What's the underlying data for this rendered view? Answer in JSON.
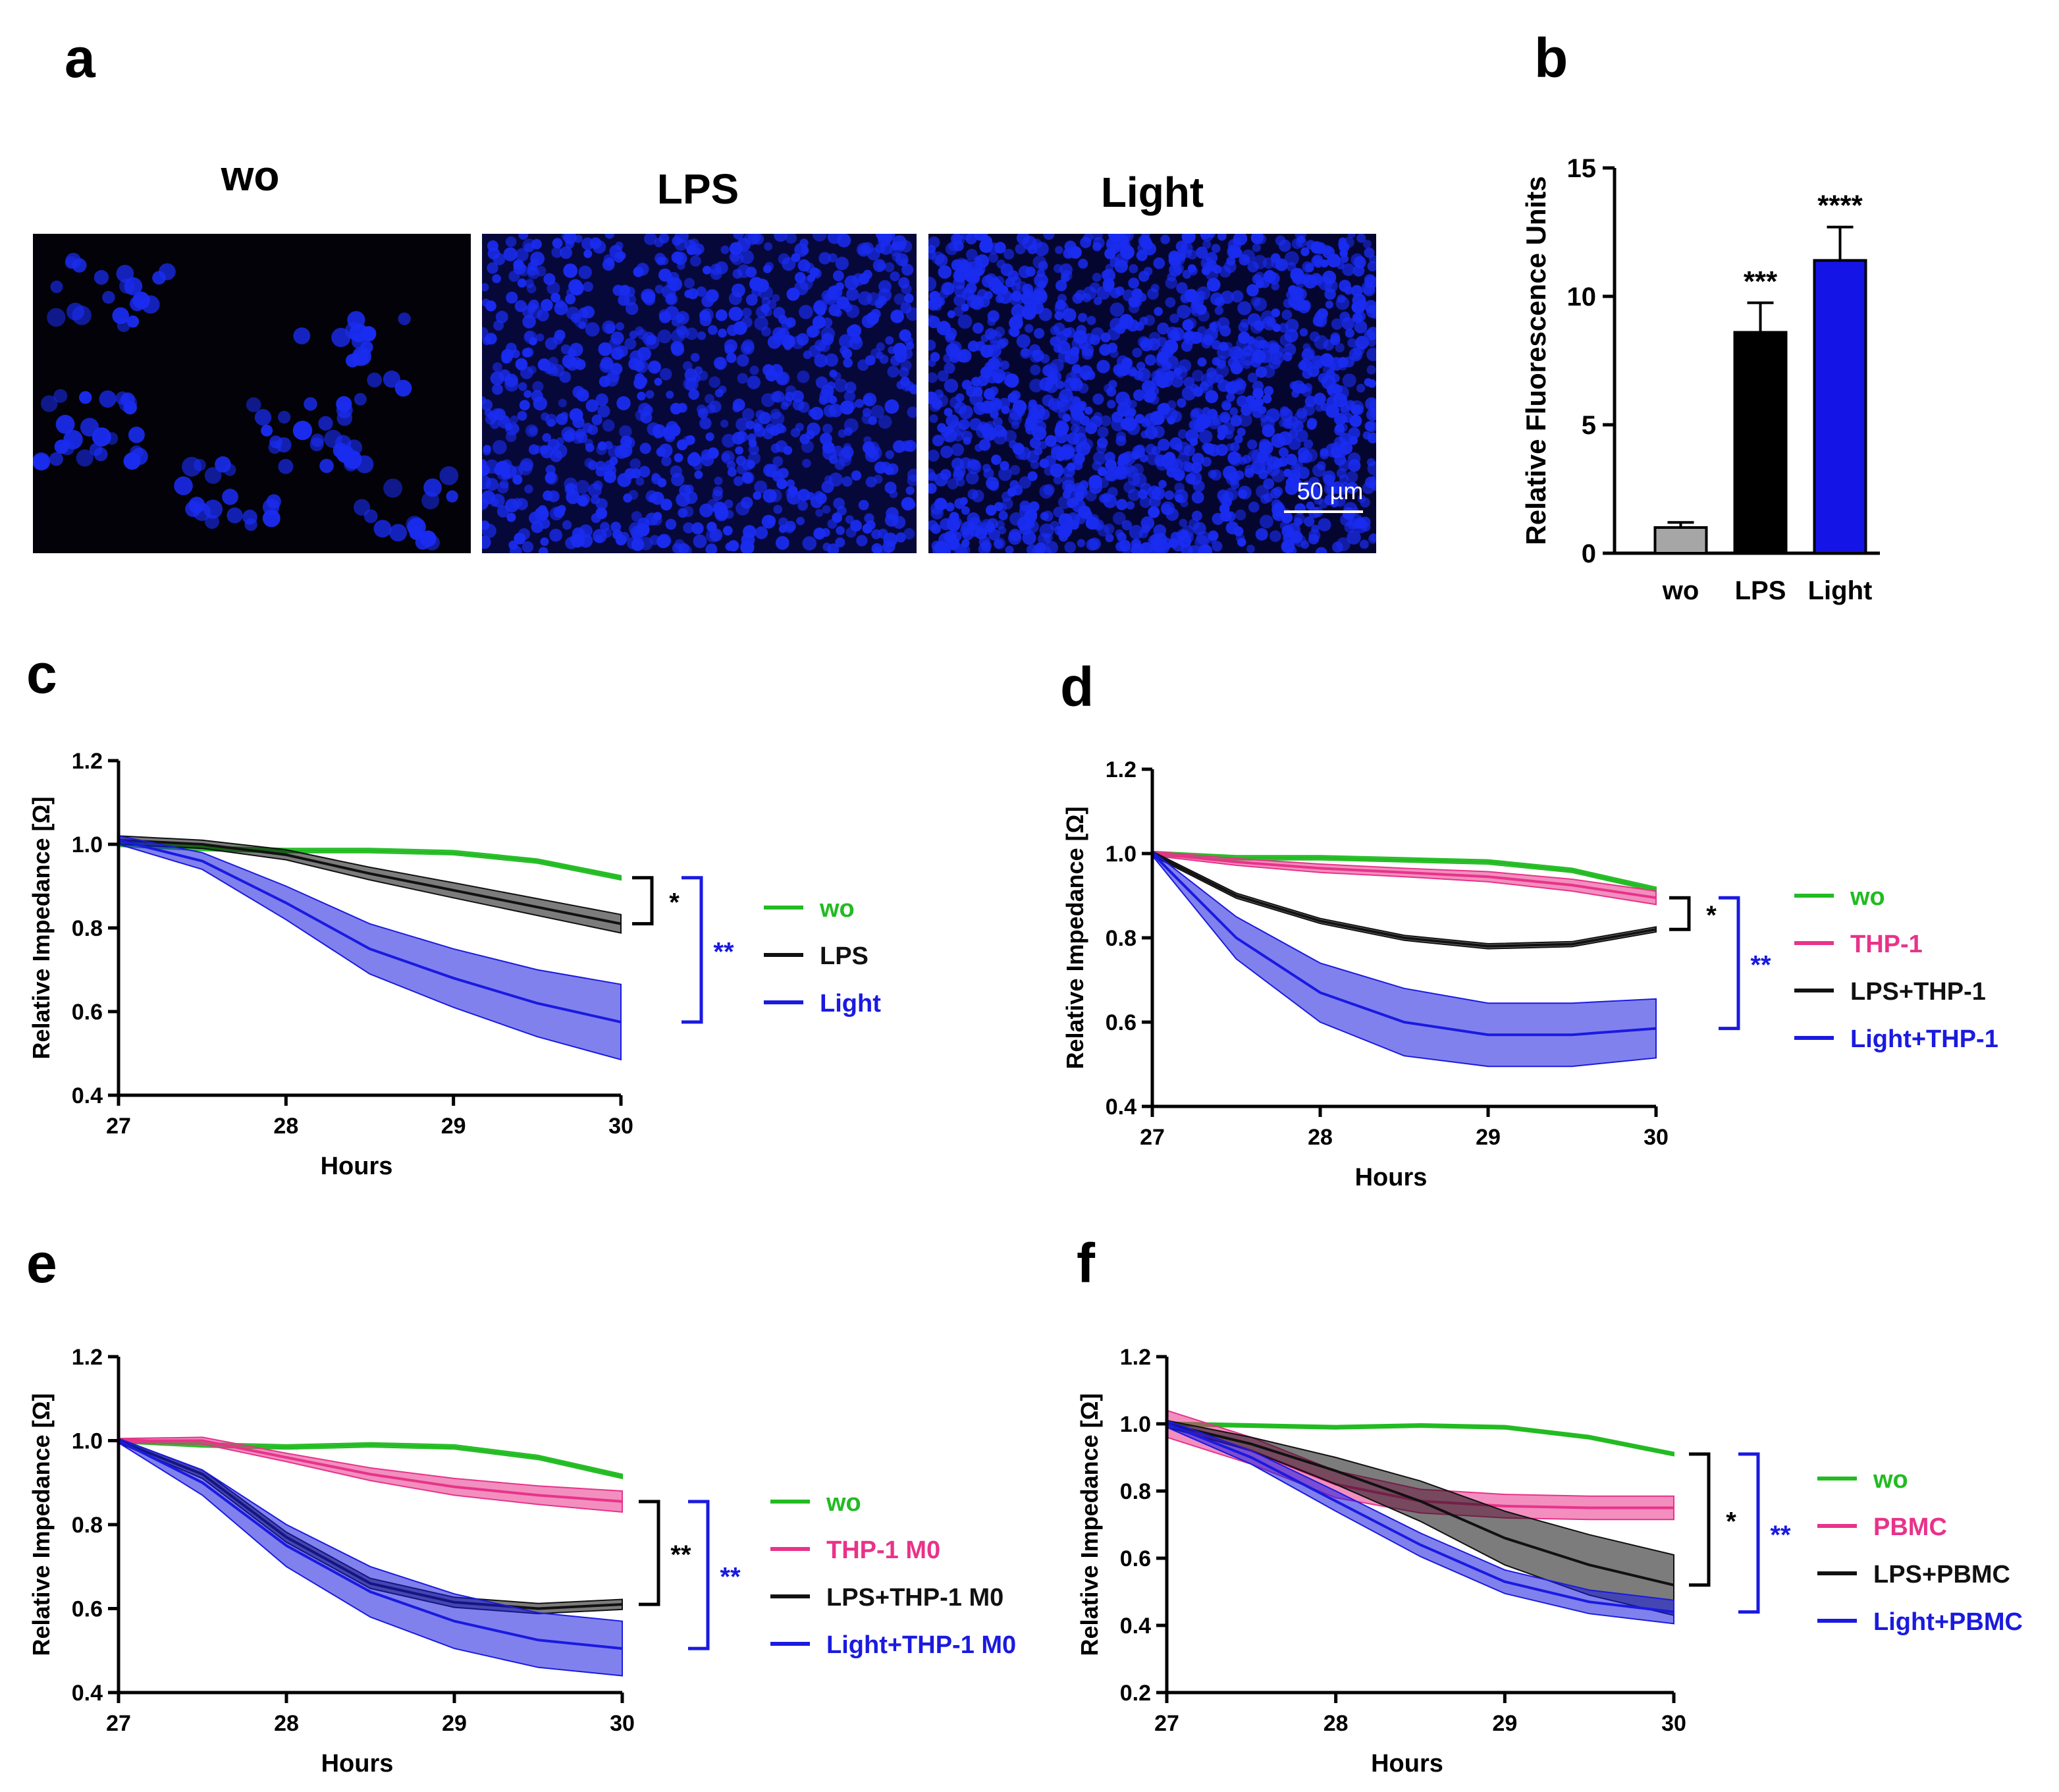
{
  "panel_letters": [
    "a",
    "b",
    "c",
    "d",
    "e",
    "f"
  ],
  "panel_a": {
    "image_titles": [
      "wo",
      "LPS",
      "Light"
    ],
    "scale_bar_label": "50 µm",
    "stain_color": "#1a2cf0"
  },
  "chart_data": [
    {
      "id": "b",
      "type": "bar",
      "categories": [
        "wo",
        "LPS",
        "Light"
      ],
      "values": [
        1.0,
        8.6,
        11.4
      ],
      "errors": [
        0.2,
        1.15,
        1.3
      ],
      "significance": [
        "",
        "***",
        "****"
      ],
      "colors": [
        "#a6a6a6",
        "#000000",
        "#1414e6"
      ],
      "ylabel": "Relative Fluorescence Units",
      "xlabel": "",
      "ylim": [
        0,
        15
      ],
      "yticks": [
        0,
        5,
        10,
        15
      ]
    },
    {
      "id": "c",
      "type": "line",
      "xlabel": "Hours",
      "ylabel": "Relative Impedance [Ω]",
      "xlim": [
        27,
        30
      ],
      "ylim": [
        0.4,
        1.2
      ],
      "xticks": [
        27,
        28,
        29,
        30
      ],
      "yticks": [
        0.4,
        0.6,
        0.8,
        1.0,
        1.2
      ],
      "x": [
        27.0,
        27.5,
        28.0,
        28.5,
        29.0,
        29.5,
        30.0
      ],
      "series": [
        {
          "name": "wo",
          "color": "#22bb22",
          "values": [
            1.0,
            0.99,
            0.985,
            0.985,
            0.98,
            0.96,
            0.92
          ],
          "errors": [
            0.005,
            0.005,
            0.005,
            0.005,
            0.005,
            0.005,
            0.005
          ]
        },
        {
          "name": "LPS",
          "color": "#111111",
          "values": [
            1.01,
            1.0,
            0.975,
            0.93,
            0.89,
            0.85,
            0.81
          ],
          "errors": [
            0.01,
            0.01,
            0.012,
            0.015,
            0.018,
            0.02,
            0.022
          ]
        },
        {
          "name": "Light",
          "color": "#1a1ae0",
          "values": [
            1.01,
            0.96,
            0.86,
            0.75,
            0.68,
            0.62,
            0.575
          ],
          "errors": [
            0.01,
            0.02,
            0.04,
            0.06,
            0.07,
            0.08,
            0.09
          ]
        }
      ],
      "brackets": [
        {
          "label": "*",
          "from": "wo",
          "to": "LPS",
          "color": "#000000"
        },
        {
          "label": "**",
          "from": "wo",
          "to": "Light",
          "color": "#1a1ae0"
        }
      ]
    },
    {
      "id": "d",
      "type": "line",
      "xlabel": "Hours",
      "ylabel": "Relative Impedance [Ω]",
      "xlim": [
        27,
        30
      ],
      "ylim": [
        0.4,
        1.2
      ],
      "xticks": [
        27,
        28,
        29,
        30
      ],
      "yticks": [
        0.4,
        0.6,
        0.8,
        1.0,
        1.2
      ],
      "x": [
        27.0,
        27.5,
        28.0,
        28.5,
        29.0,
        29.5,
        30.0
      ],
      "series": [
        {
          "name": "wo",
          "color": "#22bb22",
          "values": [
            1.0,
            0.99,
            0.99,
            0.985,
            0.98,
            0.96,
            0.915
          ],
          "errors": [
            0.005,
            0.005,
            0.005,
            0.005,
            0.005,
            0.005,
            0.005
          ]
        },
        {
          "name": "THP-1",
          "color": "#e8338a",
          "values": [
            1.0,
            0.98,
            0.965,
            0.955,
            0.945,
            0.925,
            0.895
          ],
          "errors": [
            0.005,
            0.008,
            0.01,
            0.01,
            0.012,
            0.014,
            0.016
          ]
        },
        {
          "name": "LPS+THP-1",
          "color": "#111111",
          "values": [
            1.0,
            0.9,
            0.84,
            0.8,
            0.78,
            0.785,
            0.82
          ],
          "errors": [
            0.005,
            0.006,
            0.006,
            0.006,
            0.006,
            0.006,
            0.006
          ]
        },
        {
          "name": "Light+THP-1",
          "color": "#1a1ae0",
          "values": [
            1.0,
            0.8,
            0.67,
            0.6,
            0.57,
            0.57,
            0.585
          ],
          "errors": [
            0.005,
            0.05,
            0.07,
            0.08,
            0.075,
            0.075,
            0.07
          ]
        }
      ],
      "brackets": [
        {
          "label": "*",
          "from": "THP-1",
          "to": "LPS+THP-1",
          "color": "#000000"
        },
        {
          "label": "**",
          "from": "THP-1",
          "to": "Light+THP-1",
          "color": "#1a1ae0"
        }
      ]
    },
    {
      "id": "e",
      "type": "line",
      "xlabel": "Hours",
      "ylabel": "Relative Impedance [Ω]",
      "xlim": [
        27,
        30
      ],
      "ylim": [
        0.4,
        1.2
      ],
      "xticks": [
        27,
        28,
        29,
        30
      ],
      "yticks": [
        0.4,
        0.6,
        0.8,
        1.0,
        1.2
      ],
      "x": [
        27.0,
        27.5,
        28.0,
        28.5,
        29.0,
        29.5,
        30.0
      ],
      "series": [
        {
          "name": "wo",
          "color": "#22bb22",
          "values": [
            1.0,
            0.99,
            0.985,
            0.99,
            0.985,
            0.96,
            0.915
          ],
          "errors": [
            0.005,
            0.005,
            0.005,
            0.005,
            0.005,
            0.005,
            0.005
          ]
        },
        {
          "name": "THP-1 M0",
          "color": "#e8338a",
          "values": [
            1.0,
            1.0,
            0.96,
            0.92,
            0.89,
            0.87,
            0.855
          ],
          "errors": [
            0.005,
            0.008,
            0.01,
            0.015,
            0.02,
            0.022,
            0.025
          ]
        },
        {
          "name": "LPS+THP-1 M0",
          "color": "#111111",
          "values": [
            1.0,
            0.92,
            0.77,
            0.66,
            0.615,
            0.6,
            0.61
          ],
          "errors": [
            0.005,
            0.01,
            0.012,
            0.012,
            0.012,
            0.012,
            0.012
          ]
        },
        {
          "name": "Light+THP-1 M0",
          "color": "#1a1ae0",
          "values": [
            1.0,
            0.9,
            0.75,
            0.64,
            0.57,
            0.525,
            0.505
          ],
          "errors": [
            0.005,
            0.03,
            0.05,
            0.06,
            0.065,
            0.065,
            0.065
          ]
        }
      ],
      "brackets": [
        {
          "label": "**",
          "from": "THP-1 M0",
          "to": "LPS+THP-1 M0",
          "color": "#000000"
        },
        {
          "label": "**",
          "from": "THP-1 M0",
          "to": "Light+THP-1 M0",
          "color": "#1a1ae0"
        }
      ]
    },
    {
      "id": "f",
      "type": "line",
      "xlabel": "Hours",
      "ylabel": "Relative Impedance [Ω]",
      "xlim": [
        27,
        30
      ],
      "ylim": [
        0.2,
        1.2
      ],
      "xticks": [
        27,
        28,
        29,
        30
      ],
      "yticks": [
        0.2,
        0.4,
        0.6,
        0.8,
        1.0,
        1.2
      ],
      "x": [
        27.0,
        27.5,
        28.0,
        28.5,
        29.0,
        29.5,
        30.0
      ],
      "series": [
        {
          "name": "wo",
          "color": "#22bb22",
          "values": [
            1.0,
            0.995,
            0.99,
            0.995,
            0.99,
            0.96,
            0.91
          ],
          "errors": [
            0.005,
            0.005,
            0.005,
            0.005,
            0.005,
            0.005,
            0.005
          ]
        },
        {
          "name": "PBMC",
          "color": "#e8338a",
          "values": [
            1.0,
            0.92,
            0.82,
            0.77,
            0.755,
            0.75,
            0.75
          ],
          "errors": [
            0.04,
            0.04,
            0.04,
            0.035,
            0.035,
            0.035,
            0.035
          ]
        },
        {
          "name": "LPS+PBMC",
          "color": "#111111",
          "values": [
            1.0,
            0.94,
            0.86,
            0.77,
            0.66,
            0.58,
            0.52
          ],
          "errors": [
            0.01,
            0.02,
            0.04,
            0.06,
            0.08,
            0.09,
            0.09
          ]
        },
        {
          "name": "Light+PBMC",
          "color": "#1a1ae0",
          "values": [
            1.0,
            0.9,
            0.77,
            0.64,
            0.53,
            0.47,
            0.44
          ],
          "errors": [
            0.01,
            0.02,
            0.03,
            0.035,
            0.035,
            0.035,
            0.035
          ]
        }
      ],
      "brackets": [
        {
          "label": "*",
          "from": "wo",
          "to": "LPS+PBMC",
          "color": "#000000"
        },
        {
          "label": "**",
          "from": "wo",
          "to": "Light+PBMC",
          "color": "#1a1ae0"
        }
      ]
    }
  ]
}
